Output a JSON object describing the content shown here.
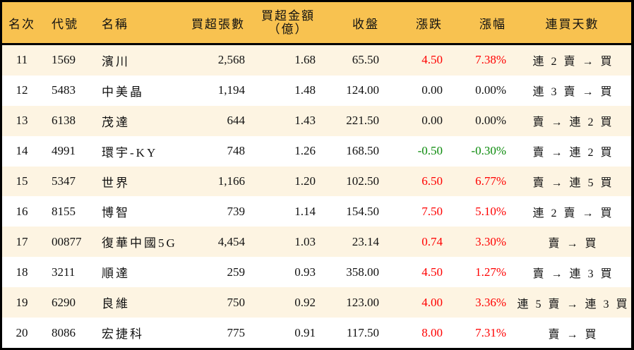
{
  "colors": {
    "header_bg": "#F8C250",
    "row_alt_bg": "#FDF4E2",
    "row_bg": "#FFFFFF",
    "up": "#FF0000",
    "down": "#0A8A0A",
    "border": "#000000"
  },
  "header": {
    "rank": "名次",
    "code": "代號",
    "name": "名稱",
    "net_buy_lots": "買超張數",
    "net_buy_amount_line1": "買超金額",
    "net_buy_amount_line2": "（億）",
    "close": "收盤",
    "change": "漲跌",
    "change_pct": "漲幅",
    "buy_streak": "連買天數"
  },
  "rows": [
    {
      "rank": "11",
      "code": "1569",
      "name": "濱川",
      "lots": "2,568",
      "amount": "1.68",
      "close": "65.50",
      "change": "4.50",
      "pct": "7.38%",
      "dir": "up",
      "streak": "連 2 賣 → 買"
    },
    {
      "rank": "12",
      "code": "5483",
      "name": "中美晶",
      "lots": "1,194",
      "amount": "1.48",
      "close": "124.00",
      "change": "0.00",
      "pct": "0.00%",
      "dir": "flat",
      "streak": "連 3 賣 → 買"
    },
    {
      "rank": "13",
      "code": "6138",
      "name": "茂達",
      "lots": "644",
      "amount": "1.43",
      "close": "221.50",
      "change": "0.00",
      "pct": "0.00%",
      "dir": "flat",
      "streak": "賣 → 連 2 買"
    },
    {
      "rank": "14",
      "code": "4991",
      "name": "環宇-KY",
      "lots": "748",
      "amount": "1.26",
      "close": "168.50",
      "change": "-0.50",
      "pct": "-0.30%",
      "dir": "down",
      "streak": "賣 → 連 2 買"
    },
    {
      "rank": "15",
      "code": "5347",
      "name": "世界",
      "lots": "1,166",
      "amount": "1.20",
      "close": "102.50",
      "change": "6.50",
      "pct": "6.77%",
      "dir": "up",
      "streak": "賣 → 連 5 買"
    },
    {
      "rank": "16",
      "code": "8155",
      "name": "博智",
      "lots": "739",
      "amount": "1.14",
      "close": "154.50",
      "change": "7.50",
      "pct": "5.10%",
      "dir": "up",
      "streak": "連 2 賣 → 買"
    },
    {
      "rank": "17",
      "code": "00877",
      "name": "復華中國5G",
      "lots": "4,454",
      "amount": "1.03",
      "close": "23.14",
      "change": "0.74",
      "pct": "3.30%",
      "dir": "up",
      "streak": "賣 → 買"
    },
    {
      "rank": "18",
      "code": "3211",
      "name": "順達",
      "lots": "259",
      "amount": "0.93",
      "close": "358.00",
      "change": "4.50",
      "pct": "1.27%",
      "dir": "up",
      "streak": "賣 → 連 3 買"
    },
    {
      "rank": "19",
      "code": "6290",
      "name": "良維",
      "lots": "750",
      "amount": "0.92",
      "close": "123.00",
      "change": "4.00",
      "pct": "3.36%",
      "dir": "up",
      "streak": "連 5 賣 → 連 3 買"
    },
    {
      "rank": "20",
      "code": "8086",
      "name": "宏捷科",
      "lots": "775",
      "amount": "0.91",
      "close": "117.50",
      "change": "8.00",
      "pct": "7.31%",
      "dir": "up",
      "streak": "賣 → 買"
    }
  ]
}
